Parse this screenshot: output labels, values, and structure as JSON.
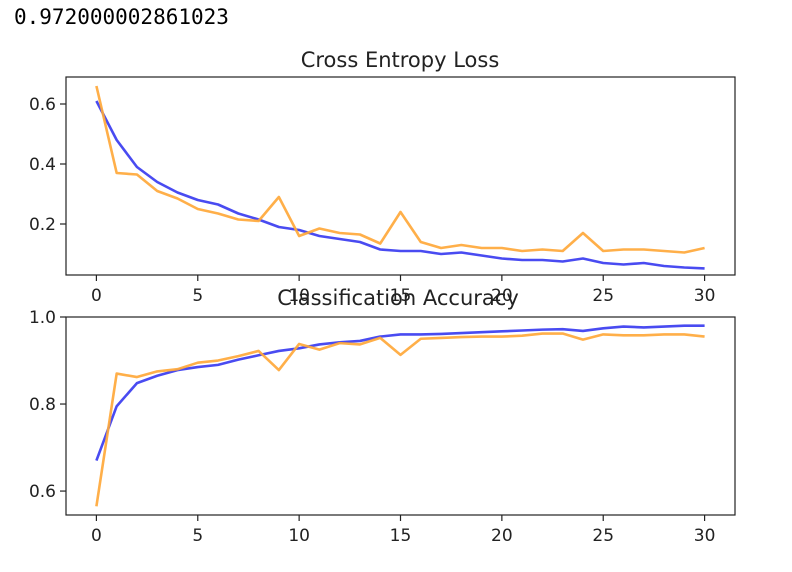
{
  "output": {
    "text": "0.972000002861023"
  },
  "colors": {
    "train": "#3a3cf0",
    "test": "#ffa83a",
    "axis": "#222222"
  },
  "chart_data": [
    {
      "type": "line",
      "title": "Cross Entropy Loss",
      "xlabel": "",
      "ylabel": "",
      "xlim": [
        -1.5,
        31.5
      ],
      "ylim": [
        0.03,
        0.69
      ],
      "xticks": [
        0,
        5,
        10,
        15,
        20,
        25,
        30
      ],
      "yticks": [
        0.2,
        0.4,
        0.6
      ],
      "ytick_labels": [
        "0.2",
        "0.4",
        "0.6"
      ],
      "grid": false,
      "x": [
        0,
        1,
        2,
        3,
        4,
        5,
        6,
        7,
        8,
        9,
        10,
        11,
        12,
        13,
        14,
        15,
        16,
        17,
        18,
        19,
        20,
        21,
        22,
        23,
        24,
        25,
        26,
        27,
        28,
        29,
        30
      ],
      "series": [
        {
          "color": "#3a3cf0",
          "values": [
            0.61,
            0.48,
            0.39,
            0.34,
            0.305,
            0.28,
            0.265,
            0.235,
            0.215,
            0.19,
            0.18,
            0.16,
            0.15,
            0.14,
            0.115,
            0.11,
            0.11,
            0.1,
            0.105,
            0.095,
            0.085,
            0.08,
            0.08,
            0.075,
            0.085,
            0.07,
            0.065,
            0.07,
            0.06,
            0.055,
            0.052
          ]
        },
        {
          "color": "#ffa83a",
          "values": [
            0.66,
            0.37,
            0.365,
            0.31,
            0.285,
            0.25,
            0.235,
            0.215,
            0.21,
            0.29,
            0.16,
            0.185,
            0.17,
            0.165,
            0.135,
            0.24,
            0.14,
            0.12,
            0.13,
            0.12,
            0.12,
            0.11,
            0.115,
            0.11,
            0.17,
            0.11,
            0.115,
            0.115,
            0.11,
            0.105,
            0.12
          ]
        }
      ]
    },
    {
      "type": "line",
      "title": "Classification Accuracy",
      "xlabel": "",
      "ylabel": "",
      "xlim": [
        -1.5,
        31.5
      ],
      "ylim": [
        0.545,
        1.0
      ],
      "xticks": [
        0,
        5,
        10,
        15,
        20,
        25,
        30
      ],
      "yticks": [
        0.6,
        0.8,
        1.0
      ],
      "ytick_labels": [
        "0.6",
        "0.8",
        "1.0"
      ],
      "grid": false,
      "x": [
        0,
        1,
        2,
        3,
        4,
        5,
        6,
        7,
        8,
        9,
        10,
        11,
        12,
        13,
        14,
        15,
        16,
        17,
        18,
        19,
        20,
        21,
        22,
        23,
        24,
        25,
        26,
        27,
        28,
        29,
        30
      ],
      "series": [
        {
          "color": "#3a3cf0",
          "values": [
            0.67,
            0.795,
            0.848,
            0.865,
            0.878,
            0.885,
            0.89,
            0.902,
            0.912,
            0.922,
            0.928,
            0.937,
            0.942,
            0.945,
            0.955,
            0.96,
            0.96,
            0.961,
            0.963,
            0.965,
            0.967,
            0.969,
            0.971,
            0.972,
            0.968,
            0.974,
            0.978,
            0.976,
            0.978,
            0.98,
            0.98
          ]
        },
        {
          "color": "#ffa83a",
          "values": [
            0.565,
            0.87,
            0.862,
            0.875,
            0.88,
            0.895,
            0.9,
            0.91,
            0.922,
            0.878,
            0.938,
            0.925,
            0.94,
            0.937,
            0.952,
            0.913,
            0.95,
            0.952,
            0.954,
            0.955,
            0.955,
            0.957,
            0.962,
            0.962,
            0.948,
            0.96,
            0.958,
            0.958,
            0.96,
            0.96,
            0.955
          ]
        }
      ]
    }
  ]
}
